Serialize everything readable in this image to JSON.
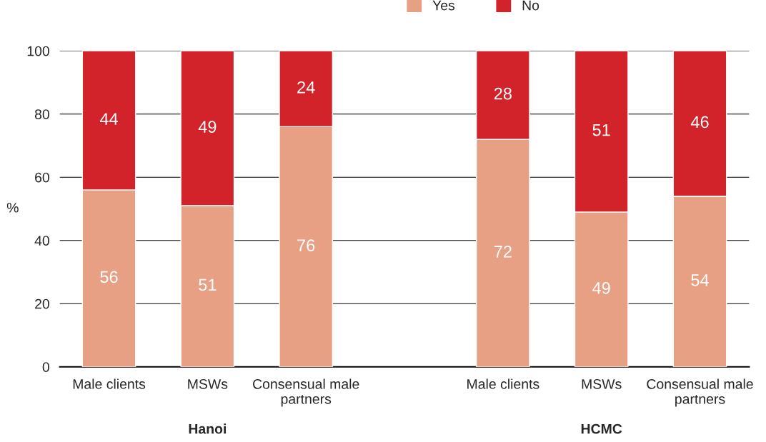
{
  "chart_data": {
    "type": "bar",
    "stacked": true,
    "ylabel": "%",
    "categories": [
      "Male clients",
      "MSWs",
      "Consensual male partners",
      null,
      "Male clients",
      "MSWs",
      "Consensual male partners"
    ],
    "series": [
      {
        "name": "Yes",
        "color": "#e8a085",
        "values": [
          56,
          51,
          76,
          null,
          72,
          49,
          54
        ]
      },
      {
        "name": "No",
        "color": "#d2232a",
        "values": [
          44,
          49,
          24,
          null,
          28,
          51,
          46
        ]
      }
    ],
    "ylim": [
      0,
      100
    ],
    "yticks": [
      0,
      20,
      40,
      60,
      80,
      100
    ],
    "grid": "y",
    "legend": "top",
    "data_labels": true,
    "annotations": [
      "Hanoi",
      "HCMC"
    ]
  }
}
